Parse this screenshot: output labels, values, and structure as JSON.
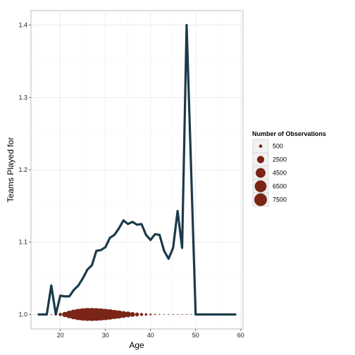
{
  "chart_data": {
    "type": "line",
    "xlabel": "Age",
    "ylabel": "Teams Played for",
    "xlim": [
      13.5,
      60.5
    ],
    "ylim": [
      0.98,
      1.42
    ],
    "x_ticks": [
      20,
      30,
      40,
      50,
      60
    ],
    "y_ticks": [
      1.0,
      1.1,
      1.2,
      1.3,
      1.4
    ],
    "grid": true,
    "line_color": "#1b3a4b",
    "point_color": "#7b2516",
    "series": [
      {
        "x": [
          15,
          16,
          17,
          18,
          19,
          20,
          21,
          22,
          23,
          24,
          25,
          26,
          27,
          28,
          29,
          30,
          31,
          32,
          33,
          34,
          35,
          36,
          37,
          38,
          39,
          40,
          41,
          42,
          43,
          44,
          45,
          46,
          47,
          48,
          49,
          50,
          51,
          52,
          53,
          54,
          55,
          56,
          57,
          58,
          59
        ],
        "values": [
          1.0,
          1.0,
          1.0,
          1.04,
          1.0,
          1.026,
          1.025,
          1.025,
          1.034,
          1.04,
          1.05,
          1.062,
          1.068,
          1.088,
          1.089,
          1.093,
          1.106,
          1.11,
          1.119,
          1.13,
          1.125,
          1.128,
          1.124,
          1.125,
          1.11,
          1.103,
          1.111,
          1.11,
          1.088,
          1.077,
          1.092,
          1.143,
          1.092,
          1.4,
          1.2,
          1.0,
          1.0,
          1.0,
          1.0,
          1.0,
          1.0,
          1.0,
          1.0,
          1.0,
          1.0
        ]
      }
    ],
    "points": {
      "name": "Number of Observations",
      "y": 1.0,
      "x": [
        17,
        18,
        19,
        20,
        21,
        22,
        23,
        24,
        25,
        26,
        27,
        28,
        29,
        30,
        31,
        32,
        33,
        34,
        35,
        36,
        37,
        38,
        39,
        40,
        41,
        42,
        43,
        44,
        45,
        46,
        47,
        48,
        49,
        50
      ],
      "values": [
        10,
        60,
        200,
        500,
        1300,
        2600,
        4300,
        5900,
        7100,
        7800,
        7900,
        7500,
        6800,
        5900,
        4900,
        3900,
        3000,
        2200,
        1600,
        1100,
        700,
        450,
        280,
        170,
        100,
        60,
        40,
        25,
        15,
        10,
        6,
        4,
        2,
        1
      ]
    },
    "legend": {
      "title": "Number of Observations",
      "position": "right",
      "entries": [
        {
          "label": "500",
          "value": 500
        },
        {
          "label": "2500",
          "value": 2500
        },
        {
          "label": "4500",
          "value": 4500
        },
        {
          "label": "6500",
          "value": 6500
        },
        {
          "label": "7500",
          "value": 7500
        }
      ]
    }
  }
}
